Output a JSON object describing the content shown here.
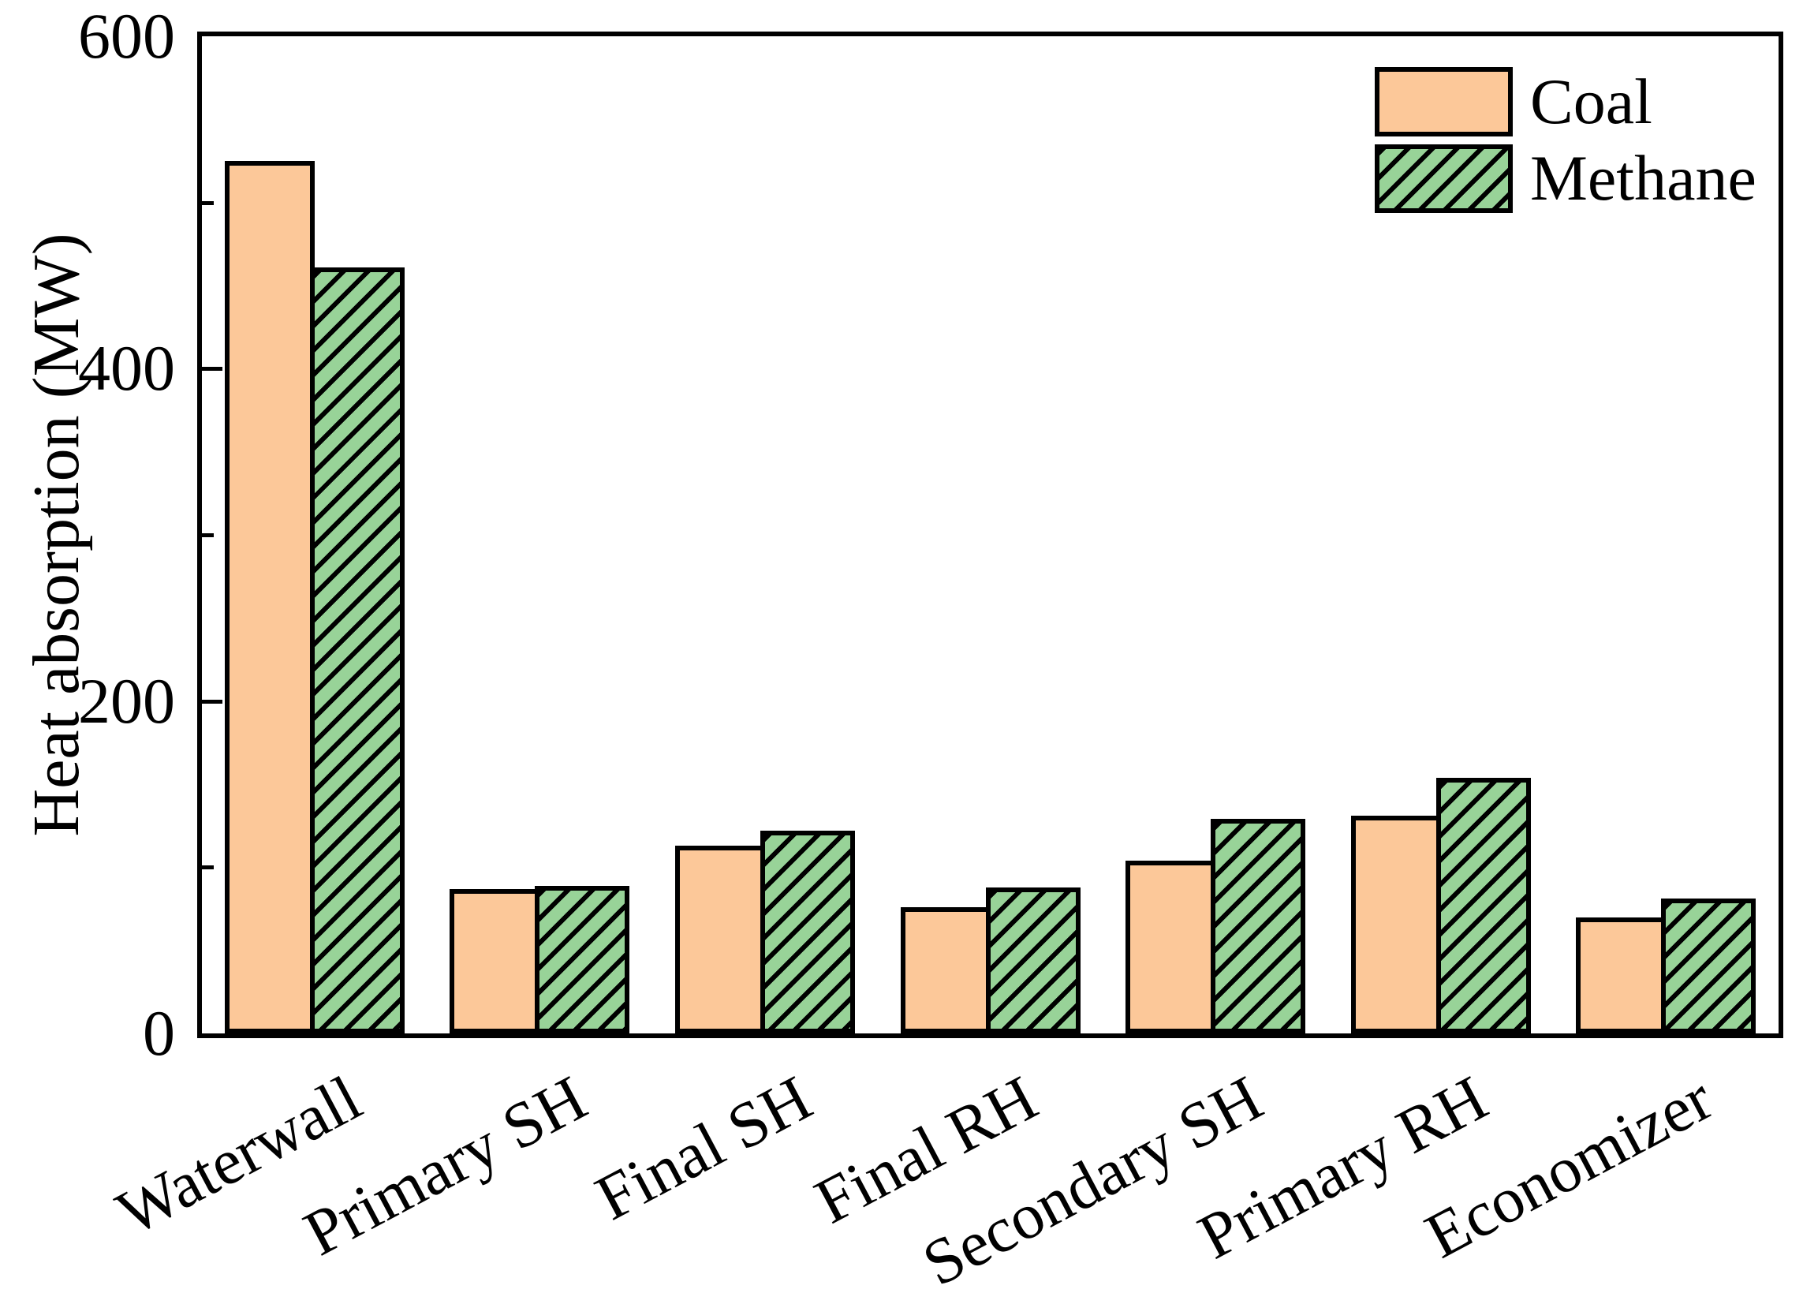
{
  "figure": {
    "ylabel": "Heat absorption (MW)",
    "background": "#ffffff",
    "axis_color": "#000000"
  },
  "legend": {
    "position": "upper-right",
    "items": [
      {
        "label": "Coal",
        "swatch": "solid-orange"
      },
      {
        "label": "Methane",
        "swatch": "green-diagonal-hatch"
      }
    ]
  },
  "chart_data": {
    "type": "bar",
    "title": "",
    "xlabel": "",
    "ylabel": "Heat absorption (MW)",
    "categories": [
      "Waterwall",
      "Primary SH",
      "Final SH",
      "Final RH",
      "Secondary SH",
      "Primary RH",
      "Economizer"
    ],
    "series": [
      {
        "name": "Coal",
        "color": "#FCC899",
        "edge_color": "#000000",
        "hatch": null,
        "values": [
          525,
          87,
          113,
          76,
          104,
          131,
          70
        ]
      },
      {
        "name": "Methane",
        "color": "#98D398",
        "edge_color": "#000000",
        "hatch": "/",
        "values": [
          461,
          89,
          122,
          88,
          129,
          154,
          81
        ]
      }
    ],
    "ylim": [
      0,
      600
    ],
    "yticks_major": [
      0,
      200,
      400,
      600
    ],
    "yticks_minor": [
      100,
      300,
      500
    ],
    "xtick_rotation_deg": 28,
    "grid": false,
    "legend_position": "upper right",
    "tick_direction": "in"
  }
}
